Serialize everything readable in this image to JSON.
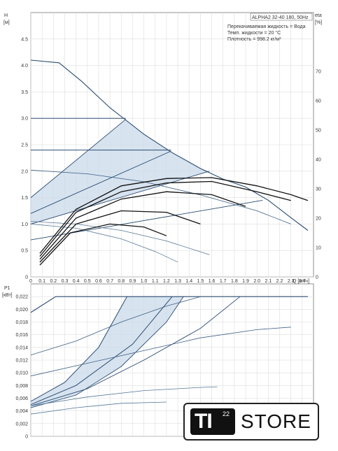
{
  "chart_data": [
    {
      "type": "line",
      "name": "head",
      "ylabel": "H",
      "ylabel_unit": "[м]",
      "y2label": "eta",
      "y2label_unit": "[%]",
      "xlabel": "Q [м³/ч]",
      "xlim": [
        0,
        2.5
      ],
      "ylim": [
        0,
        5
      ],
      "y2lim": [
        0,
        90
      ],
      "x_ticks": [
        "0",
        "0.1",
        "0.2",
        "0.3",
        "0.4",
        "0.5",
        "0.6",
        "0.7",
        "0.8",
        "0.9",
        "1.0",
        "1.1",
        "1.2",
        "1.3",
        "1.4",
        "1.5",
        "1.6",
        "1.7",
        "1.8",
        "1.9",
        "2.0",
        "2.1",
        "2.2",
        "2.3",
        "2.4"
      ],
      "y_ticks": [
        "0",
        "0.5",
        "1.0",
        "1.5",
        "2.0",
        "2.5",
        "3.0",
        "3.5",
        "4.0",
        "4.5"
      ],
      "y2_ticks": [
        "0",
        "10",
        "20",
        "30",
        "40",
        "50",
        "60",
        "70"
      ],
      "info": {
        "model": "ALPHA2 32-40 180, 50Hz",
        "liquid": "Перекачиваемая жидкость = Вода",
        "temp": "Темп. жидкости = 20 °C",
        "density": "Плотность = 998.2 кг/м³"
      },
      "grid": true,
      "series": [
        {
          "kind": "max_curve",
          "points": [
            [
              0,
              4.1
            ],
            [
              0.25,
              4.05
            ],
            [
              0.45,
              3.7
            ],
            [
              0.7,
              3.2
            ],
            [
              0.85,
              2.95
            ],
            [
              1.0,
              2.7
            ],
            [
              1.25,
              2.35
            ],
            [
              1.5,
              2.05
            ],
            [
              1.7,
              1.85
            ],
            [
              1.9,
              1.7
            ],
            [
              2.1,
              1.45
            ],
            [
              2.3,
              1.12
            ],
            [
              2.45,
              0.88
            ]
          ]
        },
        {
          "kind": "const_pressure",
          "points": [
            [
              0,
              3.0
            ],
            [
              0.84,
              3.0
            ]
          ]
        },
        {
          "kind": "const_pressure",
          "points": [
            [
              0,
              2.4
            ],
            [
              1.24,
              2.4
            ]
          ]
        },
        {
          "kind": "prop_pressure",
          "points": [
            [
              0,
              1.5
            ],
            [
              0.84,
              2.98
            ]
          ]
        },
        {
          "kind": "prop_pressure",
          "points": [
            [
              0,
              1.2
            ],
            [
              1.24,
              2.38
            ]
          ]
        },
        {
          "kind": "prop_pressure",
          "points": [
            [
              0,
              1.0
            ],
            [
              1.58,
              2.0
            ]
          ]
        },
        {
          "kind": "prop_pressure",
          "points": [
            [
              0,
              0.7
            ],
            [
              2.05,
              1.45
            ]
          ]
        },
        {
          "kind": "autoadapt",
          "points": [
            [
              0,
              2.02
            ],
            [
              0.5,
              1.95
            ],
            [
              1.0,
              1.8
            ],
            [
              1.5,
              1.55
            ],
            [
              2.0,
              1.25
            ],
            [
              2.3,
              1.0
            ]
          ]
        },
        {
          "kind": "fixed",
          "points": [
            [
              0,
              1.05
            ],
            [
              0.4,
              1.0
            ],
            [
              0.8,
              0.88
            ],
            [
              1.2,
              0.68
            ],
            [
              1.58,
              0.42
            ]
          ]
        },
        {
          "kind": "fixed",
          "points": [
            [
              0,
              1.0
            ],
            [
              0.4,
              0.92
            ],
            [
              0.8,
              0.72
            ],
            [
              1.1,
              0.48
            ],
            [
              1.3,
              0.28
            ]
          ]
        },
        {
          "kind": "eta",
          "points": [
            [
              0.08,
              8
            ],
            [
              0.4,
              23
            ],
            [
              0.8,
              31
            ],
            [
              1.2,
              33.5
            ],
            [
              1.6,
              33.8
            ],
            [
              2.0,
              31
            ],
            [
              2.3,
              28
            ],
            [
              2.45,
              26
            ]
          ]
        },
        {
          "kind": "eta",
          "points": [
            [
              0.08,
              7
            ],
            [
              0.4,
              22
            ],
            [
              0.8,
              29
            ],
            [
              1.2,
              32
            ],
            [
              1.6,
              32.5
            ],
            [
              2.0,
              29
            ],
            [
              2.3,
              26
            ]
          ]
        },
        {
          "kind": "eta",
          "points": [
            [
              0.08,
              6
            ],
            [
              0.4,
              20
            ],
            [
              0.8,
              26.5
            ],
            [
              1.2,
              29
            ],
            [
              1.6,
              28
            ],
            [
              1.9,
              24
            ]
          ]
        },
        {
          "kind": "eta",
          "points": [
            [
              0.08,
              5
            ],
            [
              0.4,
              18
            ],
            [
              0.8,
              22.5
            ],
            [
              1.2,
              22
            ],
            [
              1.5,
              18
            ]
          ]
        },
        {
          "kind": "eta",
          "points": [
            [
              0.08,
              4
            ],
            [
              0.35,
              15
            ],
            [
              0.7,
              18
            ],
            [
              1.0,
              17
            ],
            [
              1.2,
              14
            ]
          ]
        }
      ]
    },
    {
      "type": "line",
      "name": "power",
      "ylabel": "P1",
      "ylabel_unit": "[кВт]",
      "xlim": [
        0,
        2.5
      ],
      "ylim": [
        0,
        0.024
      ],
      "y_ticks": [
        "0",
        "0,002",
        "0,004",
        "0,006",
        "0,008",
        "0,010",
        "0,012",
        "0,014",
        "0,016",
        "0,018",
        "0,020",
        "0,022"
      ],
      "grid": true,
      "series": [
        {
          "kind": "max_curve",
          "points": [
            [
              0,
              0.0195
            ],
            [
              0.22,
              0.022
            ],
            [
              2.45,
              0.022
            ]
          ]
        },
        {
          "kind": "const_pressure",
          "points": [
            [
              0,
              0.0055
            ],
            [
              0.3,
              0.0085
            ],
            [
              0.6,
              0.014
            ],
            [
              0.85,
              0.022
            ]
          ]
        },
        {
          "kind": "const_pressure",
          "points": [
            [
              0,
              0.005
            ],
            [
              0.4,
              0.008
            ],
            [
              0.9,
              0.0145
            ],
            [
              1.25,
              0.022
            ]
          ]
        },
        {
          "kind": "prop_pressure",
          "points": [
            [
              0,
              0.0045
            ],
            [
              0.4,
              0.0065
            ],
            [
              0.8,
              0.011
            ],
            [
              1.2,
              0.018
            ],
            [
              1.35,
              0.022
            ]
          ]
        },
        {
          "kind": "prop_pressure",
          "points": [
            [
              0,
              0.0048
            ],
            [
              0.5,
              0.0075
            ],
            [
              1.0,
              0.012
            ],
            [
              1.5,
              0.017
            ],
            [
              1.85,
              0.022
            ]
          ]
        },
        {
          "kind": "autoadapt",
          "points": [
            [
              0,
              0.0128
            ],
            [
              0.4,
              0.015
            ],
            [
              0.8,
              0.018
            ],
            [
              1.2,
              0.0205
            ],
            [
              1.5,
              0.022
            ]
          ]
        },
        {
          "kind": "autoadapt",
          "points": [
            [
              0,
              0.0095
            ],
            [
              0.5,
              0.0115
            ],
            [
              1.0,
              0.0135
            ],
            [
              1.5,
              0.0155
            ],
            [
              2.0,
              0.0168
            ],
            [
              2.3,
              0.0172
            ]
          ]
        },
        {
          "kind": "fixed",
          "points": [
            [
              0,
              0.0048
            ],
            [
              0.5,
              0.0062
            ],
            [
              1.0,
              0.0072
            ],
            [
              1.5,
              0.0077
            ],
            [
              1.65,
              0.0078
            ]
          ]
        },
        {
          "kind": "fixed",
          "points": [
            [
              0,
              0.0035
            ],
            [
              0.4,
              0.0045
            ],
            [
              0.8,
              0.0052
            ],
            [
              1.2,
              0.0054
            ]
          ]
        }
      ]
    }
  ]
}
